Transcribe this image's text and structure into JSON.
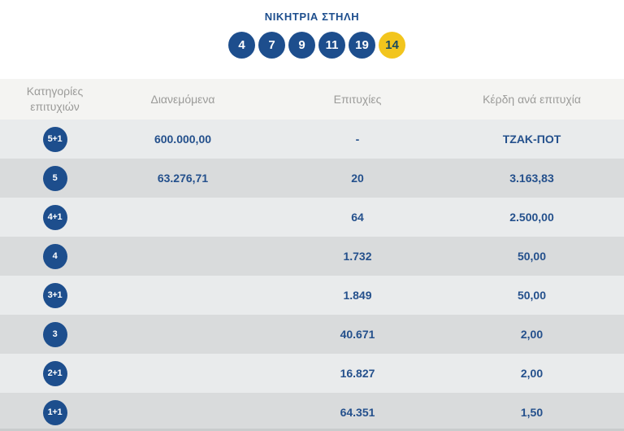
{
  "header": {
    "title": "ΝΙΚΗΤΡΙΑ ΣΤΗΛΗ",
    "balls": [
      {
        "number": "4",
        "type": "main"
      },
      {
        "number": "7",
        "type": "main"
      },
      {
        "number": "9",
        "type": "main"
      },
      {
        "number": "11",
        "type": "main"
      },
      {
        "number": "19",
        "type": "main"
      },
      {
        "number": "14",
        "type": "bonus"
      }
    ]
  },
  "table": {
    "columns": {
      "category": "Κατηγορίες επιτυχιών",
      "distributed": "Διανεμόμενα",
      "wins": "Επιτυχίες",
      "prize": "Κέρδη ανά επιτυχία"
    },
    "rows": [
      {
        "category": "5+1",
        "distributed": "600.000,00",
        "wins": "-",
        "prize": "ΤΖΑΚ-ΠΟΤ"
      },
      {
        "category": "5",
        "distributed": "63.276,71",
        "wins": "20",
        "prize": "3.163,83"
      },
      {
        "category": "4+1",
        "distributed": "",
        "wins": "64",
        "prize": "2.500,00"
      },
      {
        "category": "4",
        "distributed": "",
        "wins": "1.732",
        "prize": "50,00"
      },
      {
        "category": "3+1",
        "distributed": "",
        "wins": "1.849",
        "prize": "50,00"
      },
      {
        "category": "3",
        "distributed": "",
        "wins": "40.671",
        "prize": "2,00"
      },
      {
        "category": "2+1",
        "distributed": "",
        "wins": "16.827",
        "prize": "2,00"
      },
      {
        "category": "1+1",
        "distributed": "",
        "wins": "64.351",
        "prize": "1,50"
      }
    ]
  },
  "colors": {
    "navy": "#1d4e8d",
    "value_text": "#24508c",
    "bonus_yellow": "#f2c51d",
    "bonus_number_text": "#1a4a5f",
    "row_light": "#e9ebec",
    "row_dark": "#d9dbdc",
    "header_bg": "#f4f4f2",
    "header_text": "#9b9b99"
  }
}
